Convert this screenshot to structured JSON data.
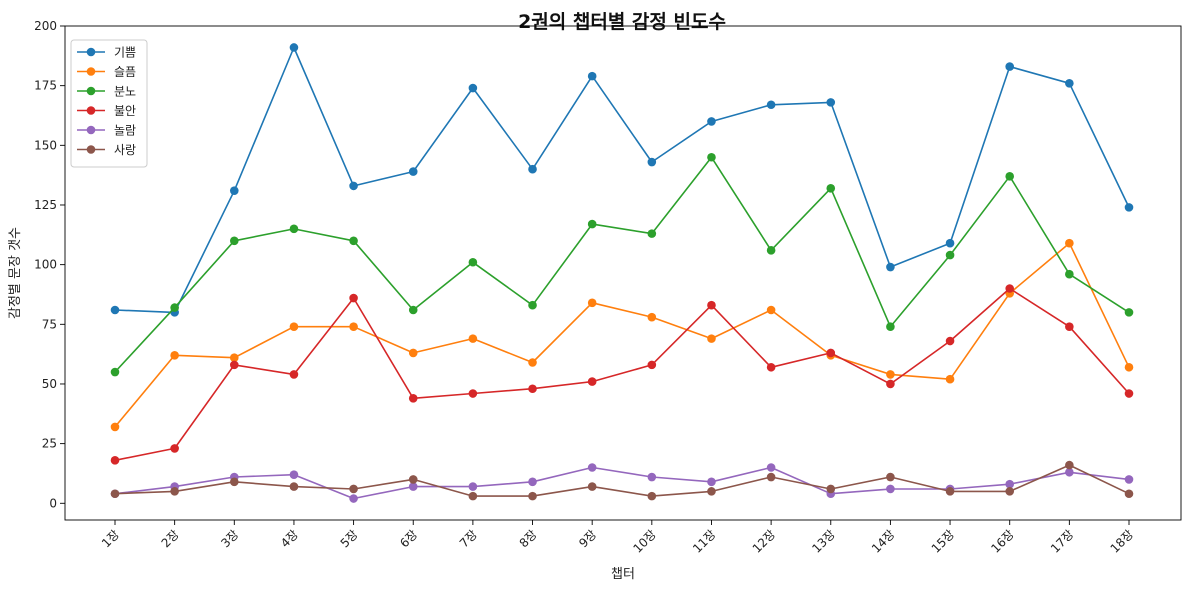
{
  "chart_data": {
    "type": "line",
    "title": "2권의 챕터별 감정 빈도수",
    "xlabel": "챕터",
    "ylabel": "감정별 문장 갯수",
    "categories": [
      "1장",
      "2장",
      "3장",
      "4장",
      "5장",
      "6장",
      "7장",
      "8장",
      "9장",
      "10장",
      "11장",
      "12장",
      "13장",
      "14장",
      "15장",
      "16장",
      "17장",
      "18장"
    ],
    "ylim": [
      -7,
      200
    ],
    "yticks": [
      0,
      25,
      50,
      75,
      100,
      125,
      150,
      175,
      200
    ],
    "legend_position": "top-left",
    "grid": false,
    "series": [
      {
        "name": "기쁨",
        "color": "#1f77b4",
        "values": [
          81,
          80,
          131,
          191,
          133,
          139,
          174,
          140,
          179,
          143,
          160,
          167,
          168,
          99,
          109,
          183,
          176,
          124
        ]
      },
      {
        "name": "슬픔",
        "color": "#ff7f0e",
        "values": [
          32,
          62,
          61,
          74,
          74,
          63,
          69,
          59,
          84,
          78,
          69,
          81,
          62,
          54,
          52,
          88,
          109,
          57
        ]
      },
      {
        "name": "분노",
        "color": "#2ca02c",
        "values": [
          55,
          82,
          110,
          115,
          110,
          81,
          101,
          83,
          117,
          113,
          145,
          106,
          132,
          74,
          104,
          137,
          96,
          80
        ]
      },
      {
        "name": "불안",
        "color": "#d62728",
        "values": [
          18,
          23,
          58,
          54,
          86,
          44,
          46,
          48,
          51,
          58,
          83,
          57,
          63,
          50,
          68,
          90,
          74,
          46
        ]
      },
      {
        "name": "놀람",
        "color": "#9467bd",
        "values": [
          4,
          7,
          11,
          12,
          2,
          7,
          7,
          9,
          15,
          11,
          9,
          15,
          4,
          6,
          6,
          8,
          13,
          10
        ]
      },
      {
        "name": "사랑",
        "color": "#8c564b",
        "values": [
          4,
          5,
          9,
          7,
          6,
          10,
          3,
          3,
          7,
          3,
          5,
          11,
          6,
          11,
          5,
          5,
          16,
          4
        ]
      }
    ]
  }
}
